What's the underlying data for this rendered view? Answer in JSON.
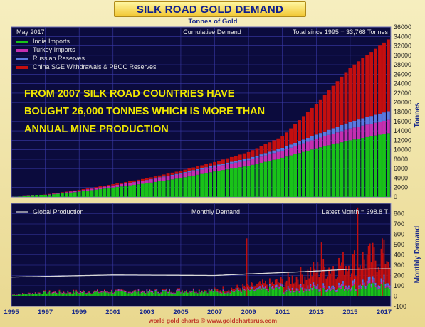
{
  "header": {
    "title": "SILK ROAD GOLD DEMAND",
    "subtitle": "Tonnes of Gold",
    "date_label": "May  2017",
    "panel_label": "Cumulative Demand",
    "total_label": "Total since 1995 = 33,768 Tonnes",
    "y_axis_label": "Tonnes",
    "annotation": [
      "FROM 2007 SILK ROAD COUNTRIES HAVE",
      "BOUGHT  26,000 TONNES WHICH IS MORE THAN",
      "ANNUAL MINE PRODUCTION"
    ],
    "footer": "world gold charts © www.goldchartsrus.com"
  },
  "lower_panel": {
    "legend_production": "Global Production",
    "panel_label": "Monthly Demand",
    "latest_label": "Latest Month = 398.8 T",
    "y_axis_label": "Monthly Demand"
  },
  "colors": {
    "background": "#0b0b3d",
    "grid": "#3a3aa8",
    "india": "#19c219",
    "turkey": "#c42fb0",
    "russia": "#5a78e0",
    "china": "#c40f0f",
    "production": "#d8d8d8",
    "annotation": "#f0e800",
    "axis_text": "#1a1a1a"
  },
  "chart_data": [
    {
      "type": "area",
      "title": "Cumulative Demand",
      "ylabel": "Tonnes",
      "ylim": [
        0,
        36000
      ],
      "yticks": [
        0,
        2000,
        4000,
        6000,
        8000,
        10000,
        12000,
        14000,
        16000,
        18000,
        20000,
        22000,
        24000,
        26000,
        28000,
        30000,
        32000,
        34000,
        36000
      ],
      "stacked": true,
      "legend_position": "top-left",
      "x": [
        1995,
        1997,
        1999,
        2001,
        2003,
        2005,
        2007,
        2009,
        2011,
        2013,
        2015,
        2017.4
      ],
      "series": [
        {
          "name": "India Imports",
          "color": "#19c219",
          "values": [
            0,
            400,
            1100,
            2000,
            2900,
            4000,
            5400,
            6600,
            8300,
            10300,
            12000,
            13600
          ]
        },
        {
          "name": "Turkey Imports",
          "color": "#c42fb0",
          "values": [
            0,
            80,
            250,
            450,
            650,
            850,
            1000,
            1200,
            1500,
            2000,
            2500,
            2850
          ]
        },
        {
          "name": "Russian Reserves",
          "color": "#5a78e0",
          "values": [
            0,
            0,
            0,
            0,
            50,
            200,
            300,
            400,
            600,
            900,
            1400,
            1850
          ]
        },
        {
          "name": "China SGE Withdrawals & PBOC Reserves",
          "color": "#c40f0f",
          "values": [
            0,
            50,
            150,
            250,
            350,
            500,
            700,
            1300,
            2400,
            6500,
            11500,
            15468
          ]
        }
      ]
    },
    {
      "type": "bar",
      "title": "Monthly Demand",
      "ylabel": "Monthly Demand",
      "ylim": [
        -100,
        900
      ],
      "yticks": [
        -100,
        0,
        100,
        200,
        300,
        400,
        500,
        600,
        700,
        800
      ],
      "xlim": [
        1995,
        2017.4
      ],
      "xticks": [
        "1995",
        "1997",
        "1999",
        "2001",
        "2003",
        "2005",
        "2007",
        "2009",
        "2011",
        "2013",
        "2015",
        "2017"
      ],
      "global_production": {
        "name": "Global Production",
        "x": [
          1995,
          2001,
          2007,
          2009,
          2012,
          2015,
          2017.4
        ],
        "values": [
          185,
          205,
          200,
          215,
          235,
          260,
          265
        ]
      },
      "monthly_totals": {
        "x": [
          1995,
          1997,
          1999,
          2001,
          2003,
          2005,
          2007,
          2009,
          2011,
          2013,
          2015,
          2017.4
        ],
        "values": [
          15,
          40,
          45,
          50,
          50,
          60,
          60,
          90,
          140,
          250,
          330,
          398.8
        ]
      },
      "spikes": [
        {
          "x": 2008.9,
          "value": 560
        },
        {
          "x": 2013.3,
          "value": 520
        },
        {
          "x": 2015.45,
          "value": 860
        },
        {
          "x": 2016.9,
          "value": 560
        }
      ],
      "latest_month": 398.8
    }
  ]
}
